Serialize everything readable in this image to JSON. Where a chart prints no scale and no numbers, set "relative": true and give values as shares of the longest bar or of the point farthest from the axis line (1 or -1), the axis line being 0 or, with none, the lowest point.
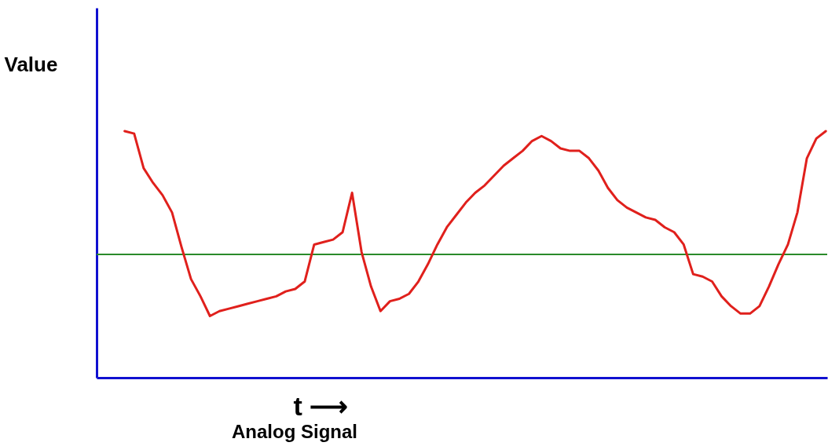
{
  "chart_data": {
    "type": "line",
    "relative": true,
    "ylabel": "Value",
    "xlabel": "t ⟶",
    "annotations": [
      "Analog Signal"
    ],
    "categories": [
      null,
      null,
      null,
      null,
      null,
      null,
      null,
      null,
      null,
      null,
      null,
      null,
      null,
      null,
      null,
      null,
      null,
      null,
      null,
      null,
      null,
      null,
      null,
      null,
      null,
      null,
      null,
      null,
      null,
      null,
      null,
      null,
      null,
      null,
      null,
      null,
      null,
      null,
      null,
      null,
      null,
      null,
      null,
      null,
      null,
      null,
      null,
      null,
      null,
      null,
      null,
      null,
      null,
      null,
      null,
      null,
      null,
      null,
      null,
      null,
      null,
      null,
      null,
      null,
      null,
      null,
      null,
      null,
      null,
      null,
      null,
      null,
      null,
      null,
      null
    ],
    "series": [
      {
        "color": "#e0201c",
        "values": [
          1.0,
          0.99,
          0.85,
          0.79,
          0.74,
          0.67,
          0.53,
          0.4,
          0.33,
          0.25,
          0.27,
          0.28,
          0.29,
          0.3,
          0.31,
          0.32,
          0.33,
          0.35,
          0.36,
          0.39,
          0.54,
          0.55,
          0.56,
          0.59,
          0.75,
          0.51,
          0.37,
          0.27,
          0.31,
          0.32,
          0.34,
          0.39,
          0.46,
          0.54,
          0.61,
          0.66,
          0.71,
          0.75,
          0.78,
          0.82,
          0.86,
          0.89,
          0.92,
          0.96,
          0.98,
          0.96,
          0.93,
          0.92,
          0.92,
          0.89,
          0.84,
          0.77,
          0.72,
          0.69,
          0.67,
          0.65,
          0.64,
          0.61,
          0.59,
          0.54,
          0.42,
          0.41,
          0.39,
          0.33,
          0.29,
          0.26,
          0.26,
          0.29,
          0.37,
          0.46,
          0.54,
          0.67,
          0.89,
          0.97,
          1.0
        ]
      }
    ],
    "ref_lines": [
      {
        "axis": "y",
        "value": 0.5,
        "color": "#2a8a2a"
      }
    ],
    "grid": false,
    "marker": "none",
    "line_style": "solid"
  }
}
